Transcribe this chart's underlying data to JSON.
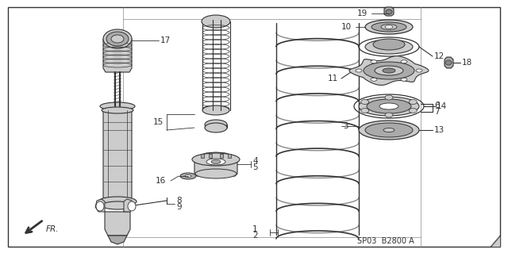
{
  "bg_color": "#ffffff",
  "border_color": "#555555",
  "diagram_code": "SP03  B2800 A",
  "fr_label": "FR.",
  "dark": "#333333",
  "gray1": "#cccccc",
  "gray2": "#aaaaaa",
  "gray3": "#888888"
}
